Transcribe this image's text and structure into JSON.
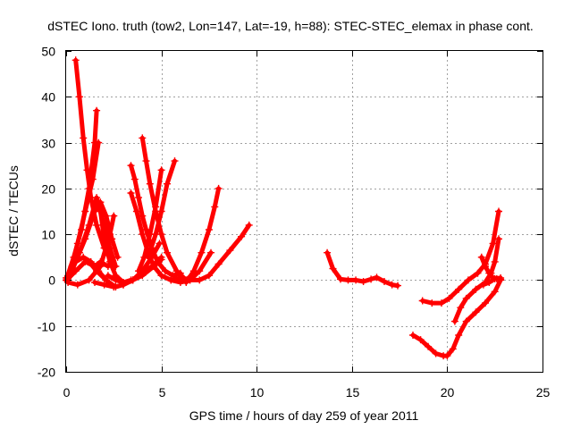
{
  "chart_data": {
    "type": "scatter",
    "title": "dSTEC Iono. truth (tow2, Lon=147, Lat=-19, h=88): STEC-STEC_elemax in phase cont.",
    "xlabel": "GPS time / hours of day 259 of year 2011",
    "ylabel": "dSTEC  / TECUs",
    "xlim": [
      0,
      25
    ],
    "ylim": [
      -20,
      50
    ],
    "xticks": [
      0,
      5,
      10,
      15,
      20,
      25
    ],
    "yticks": [
      -20,
      -10,
      0,
      10,
      20,
      30,
      40,
      50
    ],
    "grid": true,
    "marker": "plus",
    "color": "#ff0000",
    "tracks": [
      [
        [
          0.0,
          0.5
        ],
        [
          0.5,
          4
        ],
        [
          1.0,
          9
        ],
        [
          1.5,
          15
        ],
        [
          1.8,
          17
        ],
        [
          2.1,
          14
        ],
        [
          2.4,
          9
        ],
        [
          2.7,
          5
        ]
      ],
      [
        [
          0.0,
          0.0
        ],
        [
          0.3,
          2
        ],
        [
          0.7,
          6
        ],
        [
          1.2,
          12
        ],
        [
          1.6,
          18
        ],
        [
          2.0,
          12
        ],
        [
          2.3,
          7
        ],
        [
          2.6,
          3
        ]
      ],
      [
        [
          0.0,
          0.0
        ],
        [
          0.4,
          5
        ],
        [
          0.8,
          11
        ],
        [
          1.2,
          20
        ],
        [
          1.5,
          30
        ],
        [
          1.6,
          37
        ]
      ],
      [
        [
          0.0,
          0.0
        ],
        [
          0.3,
          3
        ],
        [
          0.6,
          8
        ],
        [
          1.0,
          15
        ],
        [
          1.4,
          22
        ],
        [
          1.7,
          30
        ]
      ],
      [
        [
          0.5,
          48
        ],
        [
          0.7,
          40
        ],
        [
          0.9,
          31
        ],
        [
          1.1,
          24
        ],
        [
          1.3,
          18
        ],
        [
          1.6,
          12
        ],
        [
          2.0,
          7
        ],
        [
          2.4,
          4
        ]
      ],
      [
        [
          0.1,
          0.3
        ],
        [
          0.5,
          2
        ],
        [
          1.0,
          4
        ],
        [
          1.5,
          3
        ],
        [
          1.8,
          4
        ],
        [
          2.2,
          3
        ]
      ],
      [
        [
          0.1,
          1.0
        ],
        [
          0.5,
          4
        ],
        [
          0.9,
          5
        ],
        [
          1.3,
          4
        ],
        [
          1.7,
          2
        ],
        [
          2.1,
          0
        ]
      ],
      [
        [
          0.1,
          -0.5
        ],
        [
          0.6,
          -1
        ],
        [
          1.2,
          0
        ],
        [
          1.8,
          3
        ],
        [
          2.3,
          10
        ],
        [
          2.5,
          14
        ]
      ],
      [
        [
          1.2,
          4
        ],
        [
          1.6,
          2
        ],
        [
          2.1,
          0
        ],
        [
          2.6,
          -1.5
        ],
        [
          3.0,
          -1
        ],
        [
          3.5,
          0
        ],
        [
          4.0,
          2
        ],
        [
          4.5,
          5
        ],
        [
          4.9,
          8
        ]
      ],
      [
        [
          1.5,
          -0.5
        ],
        [
          2.0,
          -1
        ],
        [
          2.5,
          -1.5
        ],
        [
          3.0,
          -1
        ],
        [
          3.5,
          0
        ],
        [
          4.0,
          1.5
        ],
        [
          4.5,
          3
        ],
        [
          5.0,
          5
        ]
      ],
      [
        [
          2.2,
          1.0
        ],
        [
          2.6,
          0
        ],
        [
          3.0,
          -0.5
        ],
        [
          3.5,
          0
        ],
        [
          4.0,
          1
        ],
        [
          4.6,
          3
        ],
        [
          5.0,
          4.5
        ]
      ],
      [
        [
          1.8,
          15
        ],
        [
          2.0,
          9
        ],
        [
          2.3,
          4
        ],
        [
          2.6,
          1
        ],
        [
          3.0,
          -0.5
        ],
        [
          3.4,
          0
        ]
      ],
      [
        [
          3.4,
          25
        ],
        [
          3.6,
          22
        ],
        [
          3.8,
          18
        ],
        [
          4.0,
          14
        ],
        [
          4.2,
          11
        ],
        [
          4.5,
          7
        ],
        [
          4.8,
          4
        ],
        [
          5.2,
          2
        ],
        [
          5.6,
          1
        ],
        [
          6.0,
          1.5
        ]
      ],
      [
        [
          3.4,
          19
        ],
        [
          3.7,
          15
        ],
        [
          4.0,
          10
        ],
        [
          4.3,
          6
        ],
        [
          4.6,
          3
        ],
        [
          5.0,
          1
        ],
        [
          5.5,
          0
        ],
        [
          6.0,
          -0.5
        ],
        [
          6.5,
          0
        ],
        [
          7.0,
          2
        ],
        [
          7.6,
          6
        ]
      ],
      [
        [
          3.8,
          2
        ],
        [
          4.1,
          5
        ],
        [
          4.4,
          10
        ],
        [
          4.7,
          16
        ],
        [
          5.0,
          24
        ]
      ],
      [
        [
          4.0,
          31
        ],
        [
          4.2,
          26
        ],
        [
          4.4,
          21
        ],
        [
          4.7,
          15
        ],
        [
          5.0,
          10
        ],
        [
          5.3,
          6
        ],
        [
          5.8,
          2
        ],
        [
          6.3,
          0
        ],
        [
          6.7,
          1.5
        ]
      ],
      [
        [
          4.3,
          5
        ],
        [
          4.7,
          10
        ],
        [
          5.0,
          15
        ],
        [
          5.3,
          21
        ],
        [
          5.7,
          26
        ]
      ],
      [
        [
          5.0,
          1
        ],
        [
          5.5,
          0
        ],
        [
          6.0,
          0.5
        ],
        [
          6.5,
          0
        ],
        [
          7.0,
          0
        ],
        [
          7.5,
          1
        ],
        [
          8.0,
          3.5
        ],
        [
          8.6,
          6.5
        ],
        [
          9.2,
          9.5
        ],
        [
          9.6,
          12
        ]
      ],
      [
        [
          6.3,
          -0.5
        ],
        [
          6.7,
          2
        ],
        [
          7.1,
          6
        ],
        [
          7.5,
          11
        ],
        [
          7.8,
          16
        ],
        [
          8.0,
          20
        ]
      ],
      [
        [
          13.7,
          6
        ],
        [
          14.0,
          2.5
        ],
        [
          14.4,
          0.2
        ],
        [
          14.8,
          0.0
        ],
        [
          15.2,
          0.0
        ],
        [
          15.6,
          -0.3
        ],
        [
          16.0,
          0.2
        ],
        [
          16.3,
          0.6
        ],
        [
          16.7,
          -0.3
        ],
        [
          17.1,
          -1
        ],
        [
          17.4,
          -1.2
        ]
      ],
      [
        [
          18.2,
          -12
        ],
        [
          18.6,
          -13
        ],
        [
          19.0,
          -14.5
        ],
        [
          19.4,
          -16
        ],
        [
          19.8,
          -16.5
        ],
        [
          20.0,
          -16.5
        ],
        [
          20.3,
          -15
        ],
        [
          20.6,
          -12
        ],
        [
          21.0,
          -9
        ],
        [
          21.5,
          -7
        ],
        [
          22.0,
          -5
        ],
        [
          22.5,
          -2.5
        ],
        [
          22.8,
          0
        ]
      ],
      [
        [
          18.7,
          -4.5
        ],
        [
          19.2,
          -5
        ],
        [
          19.7,
          -5
        ],
        [
          20.1,
          -4
        ],
        [
          20.6,
          -2
        ],
        [
          21.1,
          0
        ],
        [
          21.6,
          1.5
        ],
        [
          22.0,
          3.5
        ],
        [
          22.4,
          8
        ],
        [
          22.7,
          15
        ]
      ],
      [
        [
          20.4,
          -9
        ],
        [
          20.7,
          -6
        ],
        [
          21.0,
          -4
        ],
        [
          21.5,
          -2
        ],
        [
          22.0,
          -0.5
        ],
        [
          22.3,
          1.5
        ],
        [
          22.5,
          4
        ],
        [
          22.7,
          9
        ]
      ],
      [
        [
          21.8,
          5
        ],
        [
          22.0,
          3
        ],
        [
          22.2,
          1.5
        ],
        [
          22.4,
          0.5
        ],
        [
          22.6,
          0.3
        ],
        [
          22.8,
          0.2
        ]
      ],
      [
        [
          21.9,
          -1
        ],
        [
          22.2,
          -0.5
        ],
        [
          22.5,
          0.3
        ],
        [
          22.8,
          0.5
        ]
      ]
    ]
  }
}
